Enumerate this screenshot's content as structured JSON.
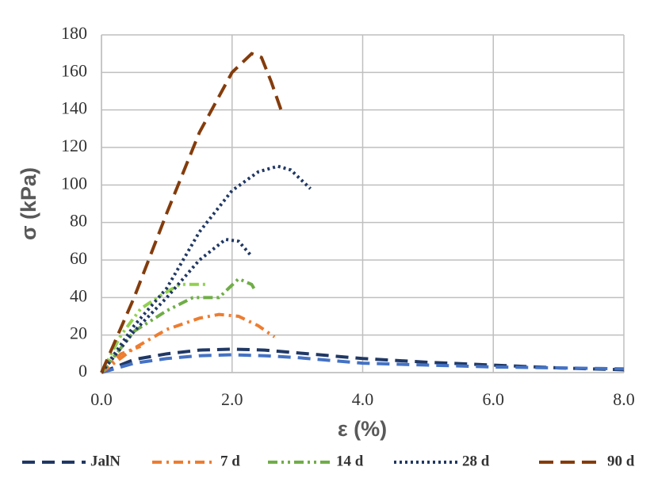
{
  "chart_data": {
    "type": "line",
    "xlabel": "ε  (%)",
    "ylabel": "σ (kPa)",
    "xlim": [
      0,
      8
    ],
    "ylim": [
      0,
      180
    ],
    "xticks": [
      {
        "value": 0,
        "label": "0.0"
      },
      {
        "value": 2,
        "label": "2.0"
      },
      {
        "value": 4,
        "label": "4.0"
      },
      {
        "value": 6,
        "label": "6.0"
      },
      {
        "value": 8,
        "label": "8.0"
      }
    ],
    "yticks": [
      0,
      20,
      40,
      60,
      80,
      100,
      120,
      140,
      160,
      180
    ],
    "grid": true,
    "legend": "bottom",
    "series": [
      {
        "name": "JalN",
        "color": "#203864",
        "dash": "dashed",
        "curves": [
          {
            "color": "#203864",
            "x": [
              0,
              0.5,
              1,
              1.5,
              2,
              2.5,
              3,
              3.5,
              4,
              5,
              6,
              7,
              8
            ],
            "values": [
              0,
              7,
              10,
              12,
              12.5,
              12,
              10.5,
              9,
              7.5,
              5.5,
              4,
              2.5,
              1.5
            ]
          },
          {
            "color": "#4472c4",
            "x": [
              0,
              0.5,
              1,
              1.5,
              2,
              2.5,
              3,
              3.5,
              4,
              5,
              6,
              7,
              8
            ],
            "values": [
              0,
              5,
              7.5,
              9,
              9.5,
              9,
              8,
              6.5,
              5,
              4,
              3,
              2.5,
              2
            ]
          }
        ]
      },
      {
        "name": "7 d",
        "color": "#ed7d31",
        "dash": "dashdot",
        "curves": [
          {
            "color": "#ed7d31",
            "x": [
              0,
              0.3,
              0.6
            ],
            "values": [
              0,
              10,
              14
            ]
          },
          {
            "color": "#ed7d31",
            "x": [
              0,
              0.5,
              1,
              1.5,
              1.8,
              2.1,
              2.4,
              2.65
            ],
            "values": [
              0,
              13,
              23,
              29,
              31,
              30,
              25,
              19
            ]
          }
        ]
      },
      {
        "name": "14 d",
        "color": "#70ad47",
        "dash": "dashdotdot",
        "curves": [
          {
            "color": "#92d050",
            "x": [
              0,
              0.3,
              0.6,
              0.9,
              1.2,
              1.6
            ],
            "values": [
              0,
              20,
              34,
              41,
              47,
              47
            ]
          },
          {
            "color": "#70ad47",
            "x": [
              0,
              0.5,
              1,
              1.4,
              1.8,
              2.1,
              2.3,
              2.35
            ],
            "values": [
              0,
              22,
              33,
              40,
              40,
              50,
              47,
              44
            ]
          }
        ]
      },
      {
        "name": "28 d",
        "color": "#203864",
        "dash": "dotted",
        "curves": [
          {
            "color": "#203864",
            "x": [
              0,
              0.5,
              1,
              1.5,
              1.9,
              2.1,
              2.3
            ],
            "values": [
              0,
              22,
              40,
              60,
              71,
              70,
              62
            ]
          },
          {
            "color": "#203864",
            "x": [
              0,
              0.5,
              1,
              1.5,
              2,
              2.4,
              2.7,
              2.9,
              3.2
            ],
            "values": [
              0,
              25,
              45,
              75,
              97,
              107,
              110,
              108,
              98
            ]
          }
        ]
      },
      {
        "name": "90 d",
        "color": "#843c0c",
        "dash": "longdash",
        "curves": [
          {
            "color": "#843c0c",
            "x": [
              0,
              0.5,
              1,
              1.5,
              2,
              2.3,
              2.45,
              2.6,
              2.75
            ],
            "values": [
              0,
              40,
              85,
              128,
              160,
              170,
              168,
              155,
              140
            ]
          }
        ]
      }
    ]
  }
}
